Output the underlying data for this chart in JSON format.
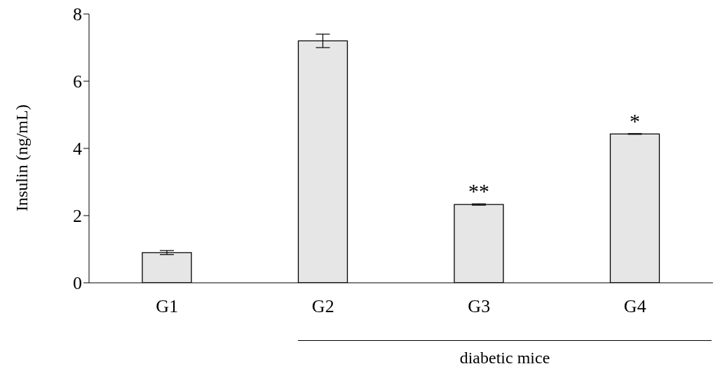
{
  "chart_data": {
    "type": "bar",
    "ylabel": "Insulin (ng/mL)",
    "categories": [
      "G1",
      "G2",
      "G3",
      "G4"
    ],
    "values": [
      0.9,
      7.2,
      2.33,
      4.43
    ],
    "errors": [
      0.06,
      0.2,
      0.02,
      0.01
    ],
    "color": "#e6e6e6",
    "ylim": [
      0,
      8
    ],
    "yticks": [
      0,
      2,
      4,
      6,
      8
    ],
    "grid": false,
    "legend": false,
    "annotations": [
      {
        "text": "**",
        "x": "G3",
        "y": 2.33
      },
      {
        "text": "*",
        "x": "G4",
        "y": 4.43
      },
      "diabetic mice"
    ]
  }
}
